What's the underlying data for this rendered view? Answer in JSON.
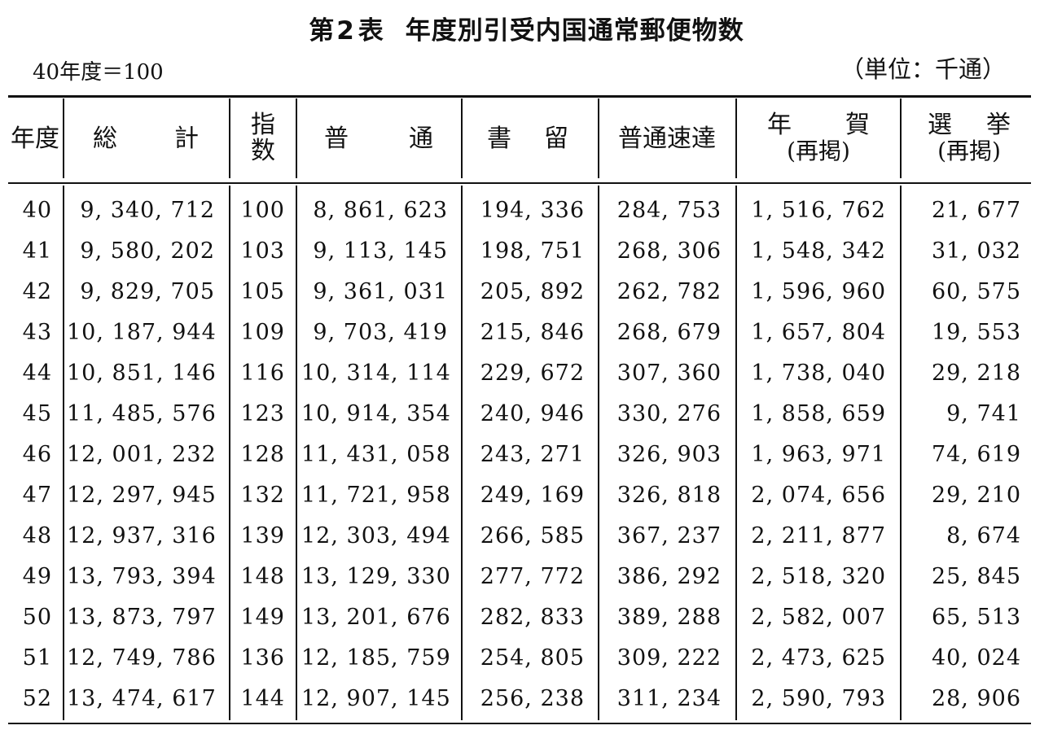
{
  "title": {
    "prefix": "第",
    "number": "2",
    "suffix": "表",
    "text": "年度別引受内国通常郵便物数"
  },
  "basis_note": "40年度＝100",
  "unit_note": "（単位：千通）",
  "headers": {
    "year": "年度",
    "total_a": "総",
    "total_b": "計",
    "index_a": "指",
    "index_b": "数",
    "normal_a": "普",
    "normal_b": "通",
    "registered_a": "書",
    "registered_b": "留",
    "express": "普通速達",
    "newyear_a": "年",
    "newyear_b": "賀",
    "newyear_sub": "(再掲)",
    "election_a": "選",
    "election_b": "挙",
    "election_sub": "(再掲)"
  },
  "rows": [
    {
      "year": "40",
      "total": "9, 340, 712",
      "index": "100",
      "normal": "8, 861, 623",
      "registered": "194, 336",
      "express": "284, 753",
      "newyear": "1, 516, 762",
      "election": "21, 677"
    },
    {
      "year": "41",
      "total": "9, 580, 202",
      "index": "103",
      "normal": "9, 113, 145",
      "registered": "198, 751",
      "express": "268, 306",
      "newyear": "1, 548, 342",
      "election": "31, 032"
    },
    {
      "year": "42",
      "total": "9, 829, 705",
      "index": "105",
      "normal": "9, 361, 031",
      "registered": "205, 892",
      "express": "262, 782",
      "newyear": "1, 596, 960",
      "election": "60, 575"
    },
    {
      "year": "43",
      "total": "10, 187, 944",
      "index": "109",
      "normal": "9, 703, 419",
      "registered": "215, 846",
      "express": "268, 679",
      "newyear": "1, 657, 804",
      "election": "19, 553"
    },
    {
      "year": "44",
      "total": "10, 851, 146",
      "index": "116",
      "normal": "10, 314, 114",
      "registered": "229, 672",
      "express": "307, 360",
      "newyear": "1, 738, 040",
      "election": "29, 218"
    },
    {
      "year": "45",
      "total": "11, 485, 576",
      "index": "123",
      "normal": "10, 914, 354",
      "registered": "240, 946",
      "express": "330, 276",
      "newyear": "1, 858, 659",
      "election": "9, 741"
    },
    {
      "year": "46",
      "total": "12, 001, 232",
      "index": "128",
      "normal": "11, 431, 058",
      "registered": "243, 271",
      "express": "326, 903",
      "newyear": "1, 963, 971",
      "election": "74, 619"
    },
    {
      "year": "47",
      "total": "12, 297, 945",
      "index": "132",
      "normal": "11, 721, 958",
      "registered": "249, 169",
      "express": "326, 818",
      "newyear": "2, 074, 656",
      "election": "29, 210"
    },
    {
      "year": "48",
      "total": "12, 937, 316",
      "index": "139",
      "normal": "12, 303, 494",
      "registered": "266, 585",
      "express": "367, 237",
      "newyear": "2, 211, 877",
      "election": "8, 674"
    },
    {
      "year": "49",
      "total": "13, 793, 394",
      "index": "148",
      "normal": "13, 129, 330",
      "registered": "277, 772",
      "express": "386, 292",
      "newyear": "2, 518, 320",
      "election": "25, 845"
    },
    {
      "year": "50",
      "total": "13, 873, 797",
      "index": "149",
      "normal": "13, 201, 676",
      "registered": "282, 833",
      "express": "389, 288",
      "newyear": "2, 582, 007",
      "election": "65, 513"
    },
    {
      "year": "51",
      "total": "12, 749, 786",
      "index": "136",
      "normal": "12, 185, 759",
      "registered": "254, 805",
      "express": "309, 222",
      "newyear": "2, 473, 625",
      "election": "40, 024"
    },
    {
      "year": "52",
      "total": "13, 474, 617",
      "index": "144",
      "normal": "12, 907, 145",
      "registered": "256, 238",
      "express": "311, 234",
      "newyear": "2, 590, 793",
      "election": "28, 906"
    }
  ]
}
